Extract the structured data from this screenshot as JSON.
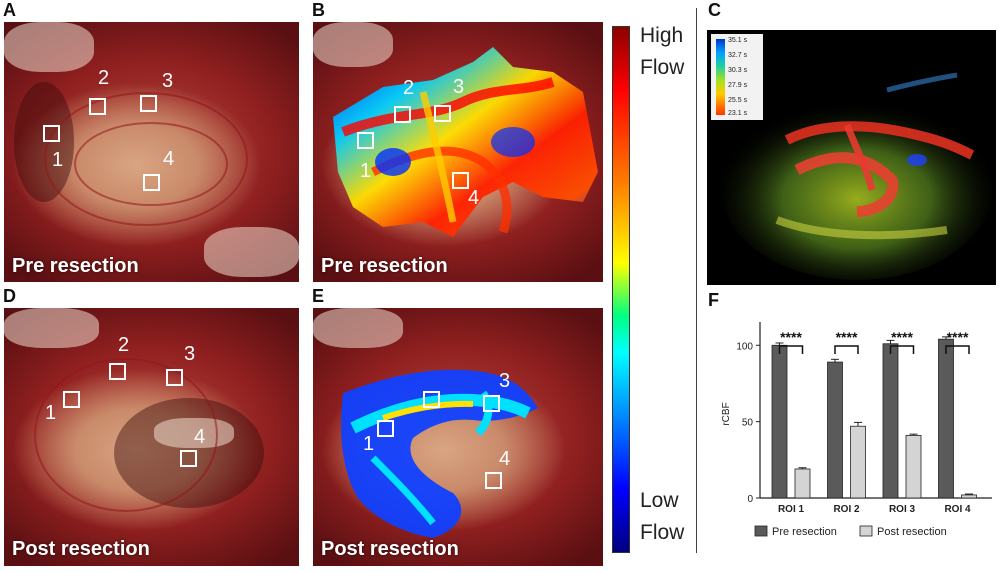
{
  "panels": {
    "a": "A",
    "b": "B",
    "c": "C",
    "d": "D",
    "e": "E",
    "f": "F"
  },
  "captions": {
    "pre": "Pre resection",
    "post": "Post resection"
  },
  "colorbar": {
    "top_line1": "High",
    "top_line2": "Flow",
    "bottom_line1": "Low",
    "bottom_line2": "Flow"
  },
  "roi_numbers": [
    "1",
    "2",
    "3",
    "4"
  ],
  "time_legend": [
    "35.1 s",
    "32.7 s",
    "30.3 s",
    "27.9 s",
    "25.5 s",
    "23.1 s"
  ],
  "chart_data": {
    "type": "bar",
    "categories": [
      "ROI 1",
      "ROI 2",
      "ROI 3",
      "ROI 4"
    ],
    "series": [
      {
        "name": "Pre resection",
        "values": [
          100,
          89,
          101,
          104
        ],
        "errors": [
          1.5,
          1.8,
          2.2,
          1.5
        ],
        "color": "#5a5a5a"
      },
      {
        "name": "Post resection",
        "values": [
          19,
          47,
          41,
          2
        ],
        "errors": [
          0.8,
          2.5,
          0.8,
          0.6
        ],
        "color": "#d4d4d4"
      }
    ],
    "significance": [
      "****",
      "****",
      "****",
      "****"
    ],
    "ylabel": "rCBF",
    "ylim": [
      0,
      110
    ],
    "yticks": [
      0,
      50,
      100
    ],
    "legend_position": "bottom"
  }
}
